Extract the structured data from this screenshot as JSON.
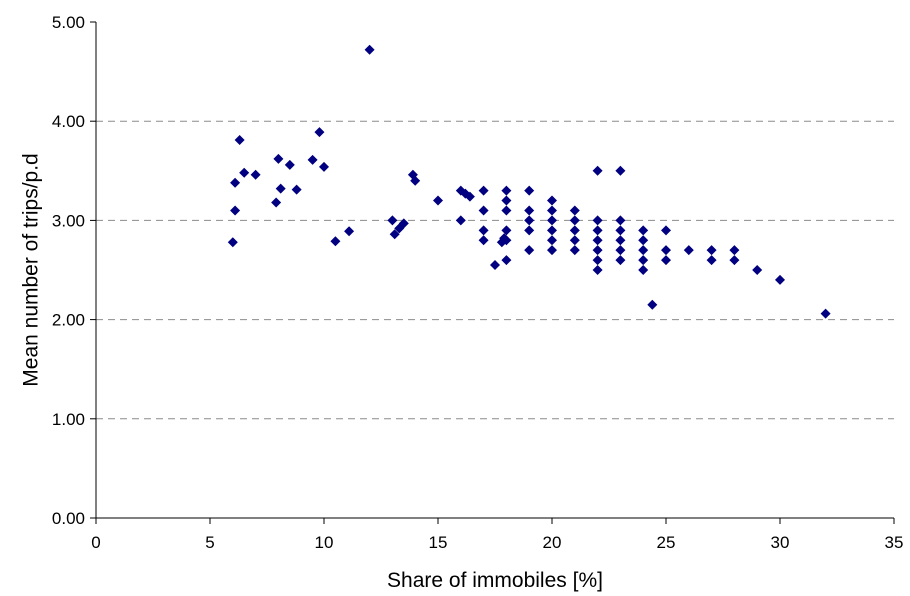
{
  "chart_data": {
    "type": "scatter",
    "title": "",
    "xlabel": "Share of immobiles [%]",
    "ylabel": "Mean number of trips/p.d",
    "xlim": [
      0,
      35
    ],
    "ylim": [
      0,
      5
    ],
    "x_ticks": [
      0,
      5,
      10,
      15,
      20,
      25,
      30,
      35
    ],
    "y_ticks": [
      0,
      1,
      2,
      3,
      4,
      5
    ],
    "x_tick_labels": [
      "0",
      "5",
      "10",
      "15",
      "20",
      "25",
      "30",
      "35"
    ],
    "y_tick_labels": [
      "0.00",
      "1.00",
      "2.00",
      "3.00",
      "4.00",
      "5.00"
    ],
    "grid": "horizontal dashed",
    "legend": "none",
    "marker": "diamond",
    "marker_color": "#000080",
    "series": [
      {
        "points": [
          [
            6.0,
            2.78
          ],
          [
            6.1,
            3.1
          ],
          [
            6.1,
            3.38
          ],
          [
            6.3,
            3.81
          ],
          [
            6.5,
            3.48
          ],
          [
            7.0,
            3.46
          ],
          [
            7.9,
            3.18
          ],
          [
            8.0,
            3.62
          ],
          [
            8.1,
            3.32
          ],
          [
            8.5,
            3.56
          ],
          [
            8.8,
            3.31
          ],
          [
            9.5,
            3.61
          ],
          [
            9.8,
            3.89
          ],
          [
            10.0,
            3.54
          ],
          [
            10.5,
            2.79
          ],
          [
            11.1,
            2.89
          ],
          [
            12.0,
            4.72
          ],
          [
            13.0,
            3.0
          ],
          [
            13.1,
            2.86
          ],
          [
            13.3,
            2.92
          ],
          [
            13.5,
            2.97
          ],
          [
            13.9,
            3.46
          ],
          [
            14.0,
            3.4
          ],
          [
            15.0,
            3.2
          ],
          [
            16.0,
            3.3
          ],
          [
            16.0,
            3.0
          ],
          [
            16.2,
            3.27
          ],
          [
            16.4,
            3.24
          ],
          [
            17.0,
            3.3
          ],
          [
            17.0,
            3.1
          ],
          [
            17.0,
            2.9
          ],
          [
            17.0,
            2.8
          ],
          [
            17.5,
            2.55
          ],
          [
            17.8,
            2.78
          ],
          [
            17.9,
            2.82
          ],
          [
            18.0,
            3.3
          ],
          [
            18.0,
            3.2
          ],
          [
            18.0,
            3.1
          ],
          [
            18.0,
            2.9
          ],
          [
            18.0,
            2.8
          ],
          [
            18.0,
            2.6
          ],
          [
            19.0,
            3.3
          ],
          [
            19.0,
            3.1
          ],
          [
            19.0,
            3.0
          ],
          [
            19.0,
            2.9
          ],
          [
            19.0,
            2.7
          ],
          [
            20.0,
            3.2
          ],
          [
            20.0,
            3.1
          ],
          [
            20.0,
            3.0
          ],
          [
            20.0,
            2.9
          ],
          [
            20.0,
            2.8
          ],
          [
            20.0,
            2.7
          ],
          [
            21.0,
            3.1
          ],
          [
            21.0,
            3.0
          ],
          [
            21.0,
            2.9
          ],
          [
            21.0,
            2.8
          ],
          [
            21.0,
            2.7
          ],
          [
            22.0,
            3.5
          ],
          [
            22.0,
            3.0
          ],
          [
            22.0,
            2.9
          ],
          [
            22.0,
            2.8
          ],
          [
            22.0,
            2.7
          ],
          [
            22.0,
            2.6
          ],
          [
            22.0,
            2.5
          ],
          [
            23.0,
            3.5
          ],
          [
            23.0,
            3.0
          ],
          [
            23.0,
            2.9
          ],
          [
            23.0,
            2.8
          ],
          [
            23.0,
            2.7
          ],
          [
            23.0,
            2.6
          ],
          [
            24.0,
            2.9
          ],
          [
            24.0,
            2.8
          ],
          [
            24.0,
            2.7
          ],
          [
            24.0,
            2.6
          ],
          [
            24.0,
            2.5
          ],
          [
            24.4,
            2.15
          ],
          [
            25.0,
            2.9
          ],
          [
            25.0,
            2.7
          ],
          [
            25.0,
            2.6
          ],
          [
            26.0,
            2.7
          ],
          [
            27.0,
            2.7
          ],
          [
            27.0,
            2.6
          ],
          [
            28.0,
            2.7
          ],
          [
            28.0,
            2.6
          ],
          [
            29.0,
            2.5
          ],
          [
            30.0,
            2.4
          ],
          [
            32.0,
            2.06
          ]
        ]
      }
    ]
  }
}
